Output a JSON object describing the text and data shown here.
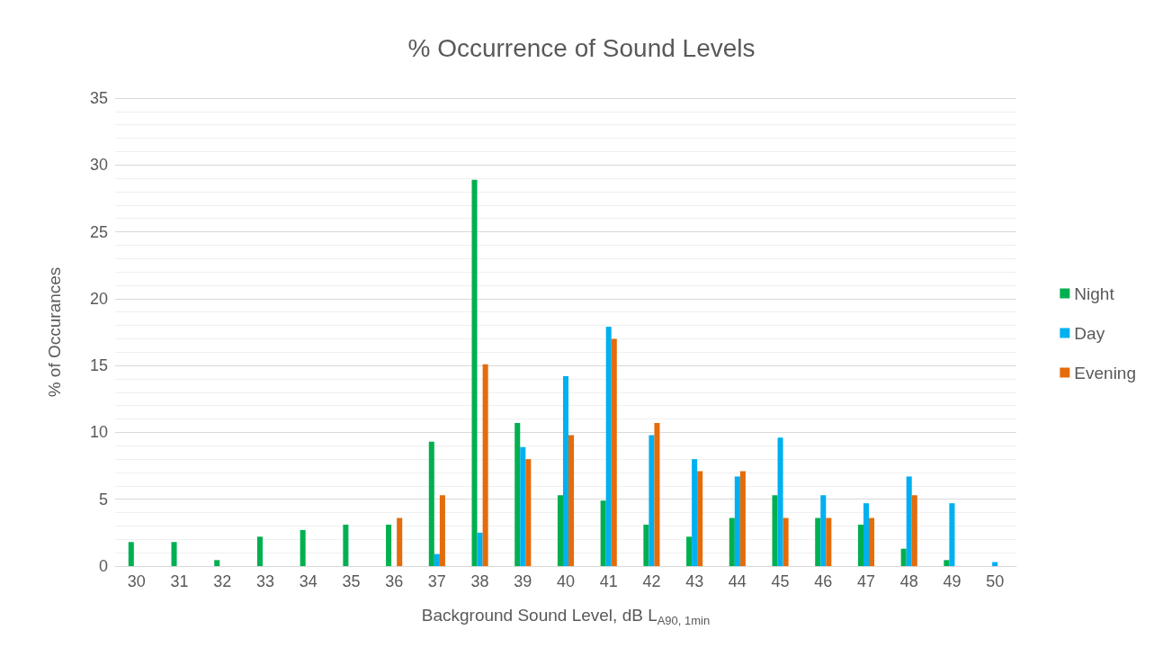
{
  "chart_data": {
    "type": "bar",
    "title": "% Occurrence of Sound Levels",
    "xlabel": "Background Sound Level, dB L$_{A90, 1min}$",
    "ylabel": "% of Occurances",
    "categories": [
      "30",
      "31",
      "32",
      "33",
      "34",
      "35",
      "36",
      "37",
      "38",
      "39",
      "40",
      "41",
      "42",
      "43",
      "44",
      "45",
      "46",
      "47",
      "48",
      "49",
      "50"
    ],
    "series": [
      {
        "name": "Night",
        "color": "#00b050",
        "values": [
          1.8,
          1.8,
          0.45,
          2.2,
          2.7,
          3.1,
          3.1,
          9.3,
          28.9,
          10.7,
          5.3,
          4.9,
          3.1,
          2.2,
          3.6,
          5.3,
          3.6,
          3.1,
          1.3,
          0.45,
          0
        ]
      },
      {
        "name": "Day",
        "color": "#00b0f0",
        "values": [
          0,
          0,
          0,
          0,
          0,
          0,
          0,
          0.9,
          2.5,
          8.9,
          14.2,
          17.9,
          9.8,
          8.0,
          6.7,
          9.6,
          5.3,
          4.7,
          6.7,
          4.7,
          0.3
        ]
      },
      {
        "name": "Evening",
        "color": "#e46c0a",
        "values": [
          0,
          0,
          0,
          0,
          0,
          0,
          3.6,
          5.3,
          15.1,
          8.0,
          9.8,
          17.0,
          10.7,
          7.1,
          7.1,
          3.6,
          3.6,
          3.6,
          5.3,
          0,
          0
        ]
      }
    ],
    "ylim": [
      0,
      35
    ],
    "yticks": [
      0,
      5,
      10,
      15,
      20,
      25,
      30,
      35
    ],
    "grid": "y",
    "legend": "right"
  }
}
